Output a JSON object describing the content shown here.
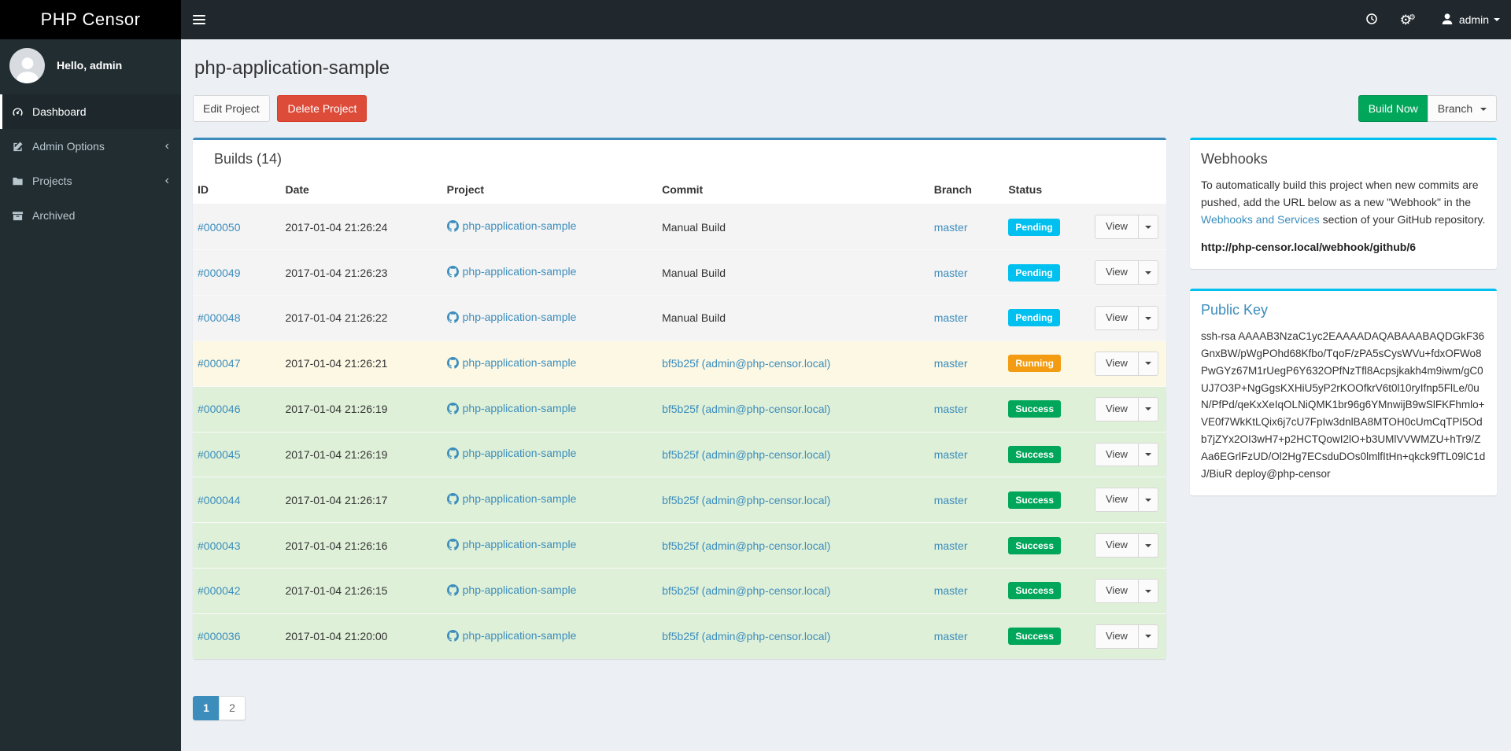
{
  "colors": {
    "accent_blue": "#3c8dbc",
    "info_aqua": "#00c0ef",
    "success_green": "#00a65a",
    "warning_orange": "#f39c12",
    "danger_red": "#dd4b39",
    "sidebar_bg": "#222d32",
    "navbar_bg": "#20282d",
    "logo_bg": "#000000",
    "status": {
      "Pending": {
        "badge": "#00c0ef",
        "row": "#f4f4f4"
      },
      "Running": {
        "badge": "#f39c12",
        "row": "#fcf8e3"
      },
      "Success": {
        "badge": "#00a65a",
        "row": "#dff0d8"
      }
    }
  },
  "header": {
    "brand": "PHP Censor",
    "user_label": "admin"
  },
  "sidebar": {
    "greeting": "Hello, admin",
    "items": [
      {
        "slug": "dashboard",
        "label": "Dashboard",
        "icon": "tachometer-icon",
        "active": true,
        "has_children": false
      },
      {
        "slug": "admin-options",
        "label": "Admin Options",
        "icon": "edit-icon",
        "active": false,
        "has_children": true
      },
      {
        "slug": "projects",
        "label": "Projects",
        "icon": "folder-icon",
        "active": false,
        "has_children": true
      },
      {
        "slug": "archived",
        "label": "Archived",
        "icon": "archive-icon",
        "active": false,
        "has_children": false
      }
    ]
  },
  "page": {
    "title": "php-application-sample",
    "edit_button": "Edit Project",
    "delete_button": "Delete Project",
    "build_now_button": "Build Now",
    "branch_button": "Branch"
  },
  "builds_box": {
    "title": "Builds (14)",
    "columns": {
      "id": "ID",
      "date": "Date",
      "project": "Project",
      "commit": "Commit",
      "branch": "Branch",
      "status": "Status"
    },
    "view_label": "View",
    "rows": [
      {
        "id": "#000050",
        "date": "2017-01-04 21:26:24",
        "project": "php-application-sample",
        "commit": "Manual Build",
        "commit_is_link": false,
        "branch": "master",
        "status": "Pending"
      },
      {
        "id": "#000049",
        "date": "2017-01-04 21:26:23",
        "project": "php-application-sample",
        "commit": "Manual Build",
        "commit_is_link": false,
        "branch": "master",
        "status": "Pending"
      },
      {
        "id": "#000048",
        "date": "2017-01-04 21:26:22",
        "project": "php-application-sample",
        "commit": "Manual Build",
        "commit_is_link": false,
        "branch": "master",
        "status": "Pending"
      },
      {
        "id": "#000047",
        "date": "2017-01-04 21:26:21",
        "project": "php-application-sample",
        "commit": "bf5b25f (admin@php-censor.local)",
        "commit_is_link": true,
        "branch": "master",
        "status": "Running"
      },
      {
        "id": "#000046",
        "date": "2017-01-04 21:26:19",
        "project": "php-application-sample",
        "commit": "bf5b25f (admin@php-censor.local)",
        "commit_is_link": true,
        "branch": "master",
        "status": "Success"
      },
      {
        "id": "#000045",
        "date": "2017-01-04 21:26:19",
        "project": "php-application-sample",
        "commit": "bf5b25f (admin@php-censor.local)",
        "commit_is_link": true,
        "branch": "master",
        "status": "Success"
      },
      {
        "id": "#000044",
        "date": "2017-01-04 21:26:17",
        "project": "php-application-sample",
        "commit": "bf5b25f (admin@php-censor.local)",
        "commit_is_link": true,
        "branch": "master",
        "status": "Success"
      },
      {
        "id": "#000043",
        "date": "2017-01-04 21:26:16",
        "project": "php-application-sample",
        "commit": "bf5b25f (admin@php-censor.local)",
        "commit_is_link": true,
        "branch": "master",
        "status": "Success"
      },
      {
        "id": "#000042",
        "date": "2017-01-04 21:26:15",
        "project": "php-application-sample",
        "commit": "bf5b25f (admin@php-censor.local)",
        "commit_is_link": true,
        "branch": "master",
        "status": "Success"
      },
      {
        "id": "#000036",
        "date": "2017-01-04 21:20:00",
        "project": "php-application-sample",
        "commit": "bf5b25f (admin@php-censor.local)",
        "commit_is_link": true,
        "branch": "master",
        "status": "Success"
      }
    ]
  },
  "pagination": {
    "pages": [
      "1",
      "2"
    ],
    "active": "1"
  },
  "webhooks_box": {
    "title": "Webhooks",
    "text_before": "To automatically build this project when new commits are pushed, add the URL below as a new \"Webhook\" in the ",
    "link_text": "Webhooks and Services",
    "text_after": " section of your GitHub repository.",
    "url": "http://php-censor.local/webhook/github/6"
  },
  "public_key_box": {
    "title": "Public Key",
    "key": "ssh-rsa AAAAB3NzaC1yc2EAAAADAQABAAABAQDGkF36GnxBW/pWgPOhd68Kfbo/TqoF/zPA5sCysWVu+fdxOFWo8PwGYz67M1rUegP6Y632OPfNzTfl8Acpsjkakh4m9iwm/gC0UJ7O3P+NgGgsKXHiU5yP2rKOOfkrV6t0l10ryIfnp5FlLe/0uN/PfPd/qeKxXeIqOLNiQMK1br96g6YMnwijB9wSlFKFhmlo+VE0f7WkKtLQix6j7cU7FpIw3dnlBA8MTOH0cUmCqTPI5Odb7jZYx2OI3wH7+p2HCTQowI2lO+b3UMlVVWMZU+hTr9/ZAa6EGrlFzUD/Ol2Hg7ECsduDOs0lmlfItHn+qkck9fTL09lC1dJ/BiuR deploy@php-censor"
  }
}
